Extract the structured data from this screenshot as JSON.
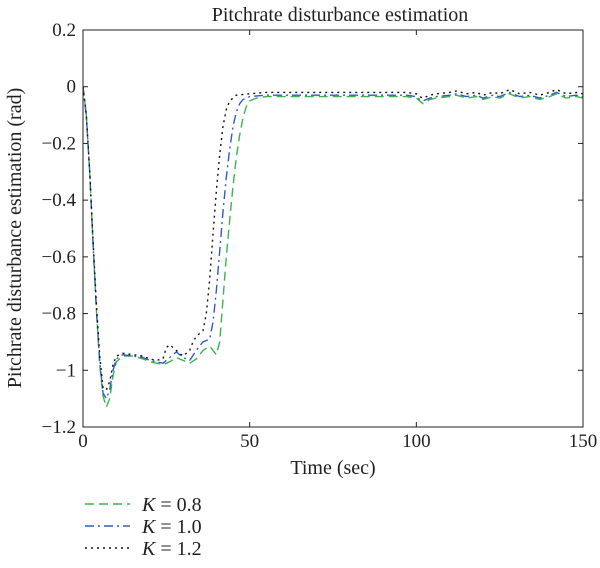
{
  "chart_data": {
    "type": "line",
    "title": "Pitchrate disturbance estimation",
    "xlabel": "Time (sec)",
    "ylabel": "Pitchrate disturbance estimation (rad)",
    "xlim": [
      0,
      150
    ],
    "ylim": [
      -1.2,
      0.2
    ],
    "xticks": [
      0,
      50,
      100,
      150
    ],
    "xtick_labels": [
      "0",
      "50",
      "100",
      "150"
    ],
    "yticks": [
      0.2,
      0,
      -0.2,
      -0.4,
      -0.6,
      -0.8,
      -1,
      -1.2
    ],
    "ytick_labels": [
      "0.2",
      "0",
      "−0.2",
      "−0.4",
      "−0.6",
      "−0.8",
      "−1",
      "−1.2"
    ],
    "grid": false,
    "legend_position": "below-left",
    "series": [
      {
        "name": "K = 0.8",
        "legend_var": "K",
        "legend_value": "= 0.8",
        "color": "#3cb44b",
        "style": "dashed",
        "points": [
          [
            0,
            0
          ],
          [
            1,
            -0.1
          ],
          [
            2,
            -0.3
          ],
          [
            3,
            -0.55
          ],
          [
            4,
            -0.78
          ],
          [
            5,
            -0.98
          ],
          [
            6,
            -1.09
          ],
          [
            7,
            -1.13
          ],
          [
            8,
            -1.1
          ],
          [
            9,
            -1.02
          ],
          [
            10,
            -0.97
          ],
          [
            12,
            -0.95
          ],
          [
            15,
            -0.95
          ],
          [
            18,
            -0.96
          ],
          [
            20,
            -0.97
          ],
          [
            22,
            -0.975
          ],
          [
            24,
            -0.98
          ],
          [
            26,
            -0.97
          ],
          [
            28,
            -0.955
          ],
          [
            30,
            -0.965
          ],
          [
            32,
            -0.975
          ],
          [
            34,
            -0.96
          ],
          [
            36,
            -0.93
          ],
          [
            38,
            -0.915
          ],
          [
            40,
            -0.945
          ],
          [
            41,
            -0.9
          ],
          [
            42,
            -0.75
          ],
          [
            43,
            -0.6
          ],
          [
            44,
            -0.47
          ],
          [
            45,
            -0.35
          ],
          [
            46,
            -0.25
          ],
          [
            47,
            -0.17
          ],
          [
            48,
            -0.11
          ],
          [
            49,
            -0.07
          ],
          [
            50,
            -0.05
          ],
          [
            52,
            -0.04
          ],
          [
            55,
            -0.035
          ],
          [
            60,
            -0.035
          ],
          [
            70,
            -0.035
          ],
          [
            80,
            -0.035
          ],
          [
            90,
            -0.035
          ],
          [
            97,
            -0.035
          ],
          [
            100,
            -0.04
          ],
          [
            101,
            -0.05
          ],
          [
            102,
            -0.06
          ],
          [
            104,
            -0.045
          ],
          [
            106,
            -0.04
          ],
          [
            110,
            -0.035
          ],
          [
            112,
            -0.03
          ],
          [
            115,
            -0.04
          ],
          [
            118,
            -0.035
          ],
          [
            120,
            -0.045
          ],
          [
            123,
            -0.035
          ],
          [
            125,
            -0.04
          ],
          [
            128,
            -0.025
          ],
          [
            131,
            -0.04
          ],
          [
            134,
            -0.035
          ],
          [
            137,
            -0.045
          ],
          [
            140,
            -0.035
          ],
          [
            142,
            -0.025
          ],
          [
            145,
            -0.04
          ],
          [
            148,
            -0.035
          ],
          [
            150,
            -0.04
          ]
        ]
      },
      {
        "name": "K = 1.0",
        "legend_var": "K",
        "legend_value": "= 1.0",
        "color": "#2e5cc7",
        "style": "dashdot",
        "points": [
          [
            0,
            0
          ],
          [
            1,
            -0.1
          ],
          [
            2,
            -0.3
          ],
          [
            3,
            -0.55
          ],
          [
            4,
            -0.78
          ],
          [
            5,
            -0.97
          ],
          [
            6,
            -1.08
          ],
          [
            7,
            -1.1
          ],
          [
            8,
            -1.07
          ],
          [
            9,
            -1.0
          ],
          [
            10,
            -0.96
          ],
          [
            12,
            -0.945
          ],
          [
            15,
            -0.95
          ],
          [
            18,
            -0.955
          ],
          [
            20,
            -0.965
          ],
          [
            22,
            -0.97
          ],
          [
            24,
            -0.975
          ],
          [
            26,
            -0.955
          ],
          [
            28,
            -0.935
          ],
          [
            30,
            -0.955
          ],
          [
            32,
            -0.965
          ],
          [
            34,
            -0.93
          ],
          [
            36,
            -0.9
          ],
          [
            38,
            -0.89
          ],
          [
            39,
            -0.83
          ],
          [
            40,
            -0.72
          ],
          [
            41,
            -0.58
          ],
          [
            42,
            -0.44
          ],
          [
            43,
            -0.32
          ],
          [
            44,
            -0.22
          ],
          [
            45,
            -0.14
          ],
          [
            46,
            -0.09
          ],
          [
            47,
            -0.06
          ],
          [
            48,
            -0.045
          ],
          [
            50,
            -0.035
          ],
          [
            55,
            -0.03
          ],
          [
            60,
            -0.03
          ],
          [
            70,
            -0.03
          ],
          [
            80,
            -0.03
          ],
          [
            90,
            -0.03
          ],
          [
            97,
            -0.03
          ],
          [
            100,
            -0.035
          ],
          [
            101,
            -0.045
          ],
          [
            102,
            -0.05
          ],
          [
            104,
            -0.04
          ],
          [
            106,
            -0.035
          ],
          [
            110,
            -0.03
          ],
          [
            112,
            -0.025
          ],
          [
            115,
            -0.035
          ],
          [
            118,
            -0.03
          ],
          [
            120,
            -0.04
          ],
          [
            123,
            -0.03
          ],
          [
            125,
            -0.035
          ],
          [
            128,
            -0.02
          ],
          [
            131,
            -0.035
          ],
          [
            134,
            -0.03
          ],
          [
            137,
            -0.04
          ],
          [
            140,
            -0.03
          ],
          [
            142,
            -0.02
          ],
          [
            145,
            -0.035
          ],
          [
            148,
            -0.03
          ],
          [
            150,
            -0.035
          ]
        ]
      },
      {
        "name": "K = 1.2",
        "legend_var": "K",
        "legend_value": "= 1.2",
        "color": "#111111",
        "style": "dotted",
        "points": [
          [
            0,
            0
          ],
          [
            1,
            -0.1
          ],
          [
            2,
            -0.3
          ],
          [
            3,
            -0.54
          ],
          [
            4,
            -0.76
          ],
          [
            5,
            -0.95
          ],
          [
            6,
            -1.06
          ],
          [
            7,
            -1.07
          ],
          [
            8,
            -1.04
          ],
          [
            9,
            -0.98
          ],
          [
            10,
            -0.95
          ],
          [
            12,
            -0.94
          ],
          [
            15,
            -0.945
          ],
          [
            18,
            -0.95
          ],
          [
            20,
            -0.96
          ],
          [
            22,
            -0.965
          ],
          [
            24,
            -0.96
          ],
          [
            25,
            -0.92
          ],
          [
            26,
            -0.91
          ],
          [
            28,
            -0.93
          ],
          [
            30,
            -0.95
          ],
          [
            32,
            -0.93
          ],
          [
            33,
            -0.9
          ],
          [
            34,
            -0.88
          ],
          [
            36,
            -0.86
          ],
          [
            37,
            -0.8
          ],
          [
            38,
            -0.68
          ],
          [
            39,
            -0.52
          ],
          [
            40,
            -0.37
          ],
          [
            41,
            -0.24
          ],
          [
            42,
            -0.14
          ],
          [
            43,
            -0.08
          ],
          [
            44,
            -0.05
          ],
          [
            46,
            -0.03
          ],
          [
            50,
            -0.025
          ],
          [
            55,
            -0.02
          ],
          [
            60,
            -0.02
          ],
          [
            70,
            -0.02
          ],
          [
            80,
            -0.02
          ],
          [
            90,
            -0.02
          ],
          [
            97,
            -0.02
          ],
          [
            100,
            -0.025
          ],
          [
            101,
            -0.035
          ],
          [
            102,
            -0.04
          ],
          [
            104,
            -0.03
          ],
          [
            106,
            -0.025
          ],
          [
            110,
            -0.02
          ],
          [
            112,
            -0.015
          ],
          [
            115,
            -0.025
          ],
          [
            118,
            -0.02
          ],
          [
            120,
            -0.03
          ],
          [
            123,
            -0.02
          ],
          [
            125,
            -0.025
          ],
          [
            128,
            -0.01
          ],
          [
            131,
            -0.025
          ],
          [
            134,
            -0.02
          ],
          [
            137,
            -0.03
          ],
          [
            140,
            -0.02
          ],
          [
            142,
            -0.01
          ],
          [
            145,
            -0.025
          ],
          [
            148,
            -0.02
          ],
          [
            150,
            -0.025
          ]
        ]
      }
    ]
  }
}
